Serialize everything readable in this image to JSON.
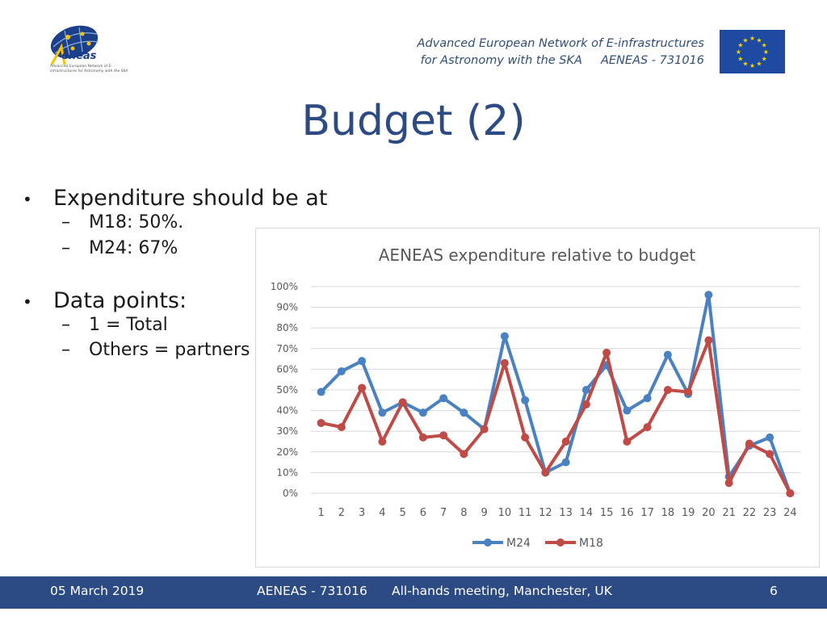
{
  "header": {
    "line1": "Advanced European Network of E-infrastructures",
    "line2": "for Astronomy with the SKA     AENEAS - 731016",
    "logo_word": "eneas",
    "logo_sub": "Advanced European Network of E-infrastructures for Astronomy with the SKA"
  },
  "title": "Budget (2)",
  "bullets": [
    {
      "text": "Expenditure should be at",
      "subs": [
        "M18:  50%.",
        "M24:  67%"
      ]
    },
    {
      "text": "Data points:",
      "subs": [
        "1 = Total",
        "Others = partners"
      ]
    }
  ],
  "bullet_glyph": "•",
  "dash_glyph": "–",
  "chart_data": {
    "type": "line",
    "title": "AENEAS expenditure relative to budget",
    "x": [
      1,
      2,
      3,
      4,
      5,
      6,
      7,
      8,
      9,
      10,
      11,
      12,
      13,
      14,
      15,
      16,
      17,
      18,
      19,
      20,
      21,
      22,
      23,
      24
    ],
    "ylim": [
      0,
      100
    ],
    "yticks": [
      "0%",
      "10%",
      "20%",
      "30%",
      "40%",
      "50%",
      "60%",
      "70%",
      "80%",
      "90%",
      "100%"
    ],
    "grid": true,
    "legend": "bottom",
    "series": [
      {
        "name": "M24",
        "color": "#4a81c2",
        "values": [
          49,
          59,
          64,
          39,
          44,
          39,
          46,
          39,
          31,
          76,
          45,
          10,
          15,
          50,
          62,
          40,
          46,
          67,
          48,
          96,
          8,
          23,
          27,
          0
        ]
      },
      {
        "name": "M18",
        "color": "#c04a46",
        "values": [
          34,
          32,
          51,
          25,
          44,
          27,
          28,
          19,
          31,
          63,
          27,
          10,
          25,
          43,
          68,
          25,
          32,
          50,
          49,
          74,
          5,
          24,
          19,
          0
        ]
      }
    ]
  },
  "footer": {
    "date": "05 March 2019",
    "project": "AENEAS - 731016",
    "event": "All-hands meeting, Manchester, UK",
    "page": "6"
  },
  "colors": {
    "title": "#2c4a83",
    "footer_bg": "#2c4a83",
    "eu_blue": "#1f4aa1",
    "eu_star": "#f5d600"
  }
}
